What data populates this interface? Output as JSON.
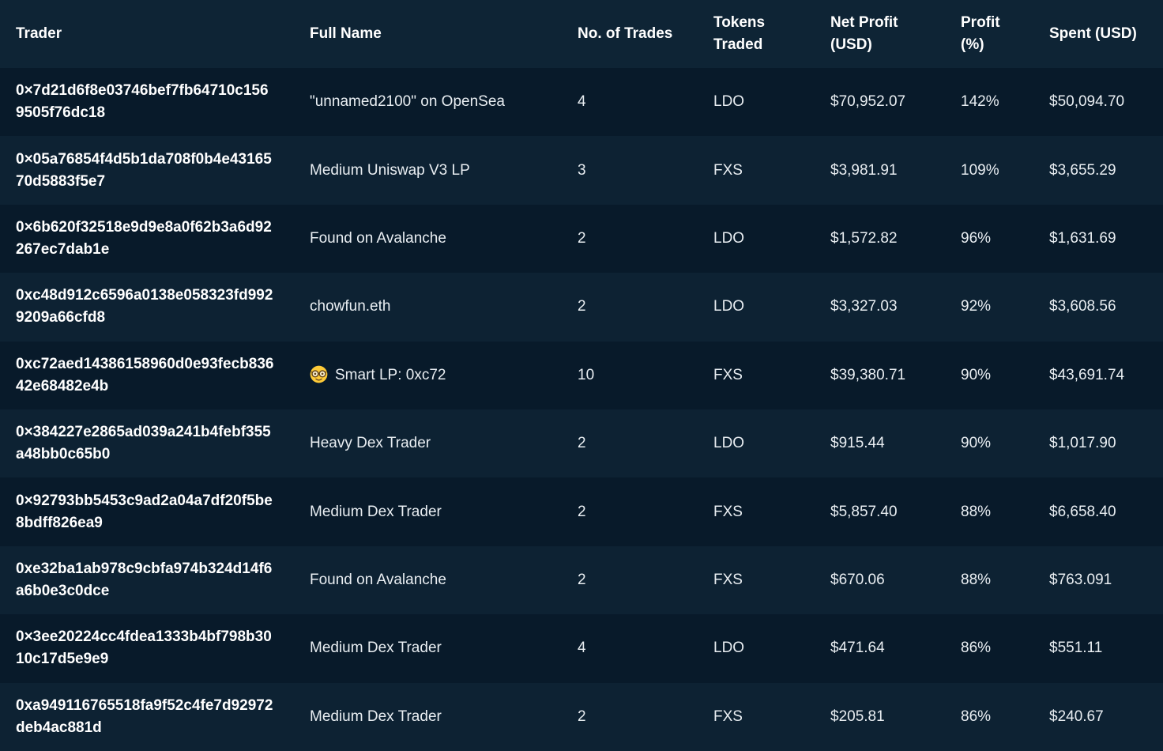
{
  "colors": {
    "header_bg": "#0e2435",
    "row_dark": "#081a2a",
    "row_light": "#0d2233",
    "header_text": "#ffffff",
    "cell_text": "#e9eef2",
    "trader_text": "#ffffff"
  },
  "table": {
    "columns": [
      {
        "id": "trader",
        "label": "Trader"
      },
      {
        "id": "full_name",
        "label": "Full Name"
      },
      {
        "id": "num_trades",
        "label": "No. of Trades"
      },
      {
        "id": "tokens_traded",
        "label": "Tokens Traded"
      },
      {
        "id": "net_profit_usd",
        "label": "Net Profit (USD)"
      },
      {
        "id": "profit_pct",
        "label": "Profit (%)"
      },
      {
        "id": "spent_usd",
        "label": "Spent (USD)"
      }
    ],
    "rows": [
      {
        "trader": "0×7d21d6f8e03746bef7fb64710c1569505f76dc18",
        "full_name": "\"unnamed2100\" on OpenSea",
        "num_trades": "4",
        "tokens_traded": "LDO",
        "net_profit_usd": "$70,952.07",
        "profit_pct": "142%",
        "spent_usd": "$50,094.70"
      },
      {
        "trader": "0×05a76854f4d5b1da708f0b4e4316570d5883f5e7",
        "full_name": "Medium Uniswap V3 LP",
        "num_trades": "3",
        "tokens_traded": "FXS",
        "net_profit_usd": "$3,981.91",
        "profit_pct": "109%",
        "spent_usd": "$3,655.29"
      },
      {
        "trader": "0×6b620f32518e9d9e8a0f62b3a6d92267ec7dab1e",
        "full_name": "Found on Avalanche",
        "num_trades": "2",
        "tokens_traded": "LDO",
        "net_profit_usd": "$1,572.82",
        "profit_pct": "96%",
        "spent_usd": "$1,631.69"
      },
      {
        "trader": "0xc48d912c6596a0138e058323fd9929209a66cfd8",
        "full_name": "chowfun.eth",
        "num_trades": "2",
        "tokens_traded": "LDO",
        "net_profit_usd": "$3,327.03",
        "profit_pct": "92%",
        "spent_usd": "$3,608.56"
      },
      {
        "trader": "0xc72aed14386158960d0e93fecb83642e68482e4b",
        "full_name": "Smart LP: 0xc72",
        "full_name_emoji": "🤓",
        "num_trades": "10",
        "tokens_traded": "FXS",
        "net_profit_usd": "$39,380.71",
        "profit_pct": "90%",
        "spent_usd": "$43,691.74"
      },
      {
        "trader": "0×384227e2865ad039a241b4febf355a48bb0c65b0",
        "full_name": "Heavy Dex Trader",
        "num_trades": "2",
        "tokens_traded": "LDO",
        "net_profit_usd": "$915.44",
        "profit_pct": "90%",
        "spent_usd": "$1,017.90"
      },
      {
        "trader": "0×92793bb5453c9ad2a04a7df20f5be8bdff826ea9",
        "full_name": "Medium Dex Trader",
        "num_trades": "2",
        "tokens_traded": "FXS",
        "net_profit_usd": "$5,857.40",
        "profit_pct": "88%",
        "spent_usd": "$6,658.40"
      },
      {
        "trader": "0xe32ba1ab978c9cbfa974b324d14f6a6b0e3c0dce",
        "full_name": "Found on Avalanche",
        "num_trades": "2",
        "tokens_traded": "FXS",
        "net_profit_usd": "$670.06",
        "profit_pct": "88%",
        "spent_usd": "$763.091"
      },
      {
        "trader": "0×3ee20224cc4fdea1333b4bf798b3010c17d5e9e9",
        "full_name": "Medium Dex Trader",
        "num_trades": "4",
        "tokens_traded": "LDO",
        "net_profit_usd": "$471.64",
        "profit_pct": "86%",
        "spent_usd": "$551.11"
      },
      {
        "trader": "0xa949116765518fa9f52c4fe7d92972deb4ac881d",
        "full_name": "Medium Dex Trader",
        "num_trades": "2",
        "tokens_traded": "FXS",
        "net_profit_usd": "$205.81",
        "profit_pct": "86%",
        "spent_usd": "$240.67"
      }
    ]
  }
}
